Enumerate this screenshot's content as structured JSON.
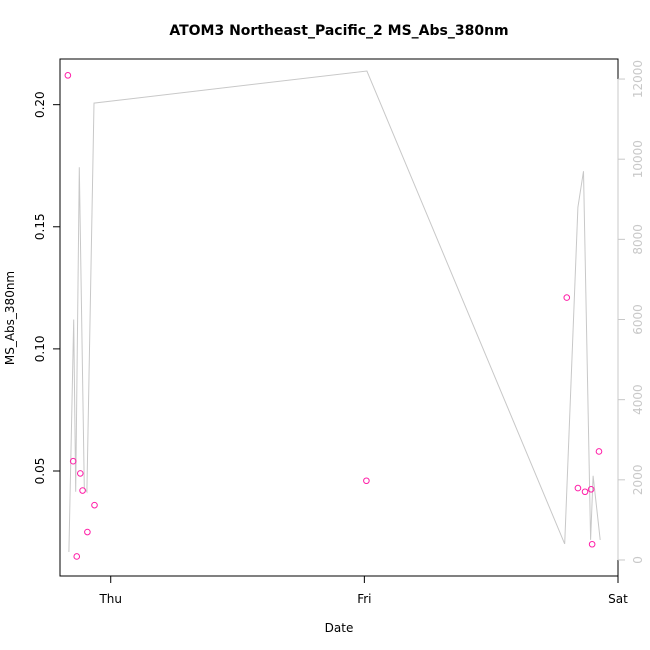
{
  "chart_data": {
    "type": "scatter",
    "title": "ATOM3 Northeast_Pacific_2 MS_Abs_380nm",
    "xlabel": "Date",
    "ylabel": "MS_Abs_380nm",
    "x_ticks": [
      "Thu",
      "Fri",
      "Sat"
    ],
    "y_left": {
      "ticks": [
        0.05,
        0.1,
        0.15,
        0.2
      ],
      "tick_labels": [
        "0.05",
        "0.10",
        "0.15",
        "0.20"
      ],
      "range": [
        0.007,
        0.2187
      ]
    },
    "y_right": {
      "ticks": [
        0,
        2000,
        4000,
        6000,
        8000,
        10000,
        12000
      ],
      "tick_labels": [
        "0",
        "2000",
        "4000",
        "6000",
        "8000",
        "10000",
        "12000"
      ],
      "range": [
        -400,
        12500
      ],
      "color": "#c8c8c8"
    },
    "x_range_days": [
      -0.2,
      2.0
    ],
    "points_color": "#ff1fa8",
    "line_color": "#c8c8c8",
    "series": [
      {
        "kind": "points",
        "axis": "left",
        "x_days": [
          -0.169,
          -0.148,
          -0.134,
          -0.12,
          -0.111,
          -0.092,
          -0.064,
          1.008,
          1.798,
          1.842,
          1.87,
          1.894,
          1.898,
          1.925
        ],
        "values": [
          0.212,
          0.054,
          0.015,
          0.049,
          0.042,
          0.025,
          0.036,
          0.046,
          0.121,
          0.043,
          0.0415,
          0.0425,
          0.02,
          0.058
        ]
      },
      {
        "kind": "line",
        "axis": "right",
        "x_days": [
          -0.165,
          -0.146,
          -0.138,
          -0.124,
          -0.104,
          -0.094,
          -0.066,
          1.01,
          1.79,
          1.842,
          1.864,
          1.892,
          1.902,
          1.93
        ],
        "values": [
          200,
          6000,
          1700,
          9800,
          1800,
          1700,
          11400,
          12200,
          400,
          8800,
          9700,
          500,
          2100,
          500
        ]
      }
    ]
  }
}
